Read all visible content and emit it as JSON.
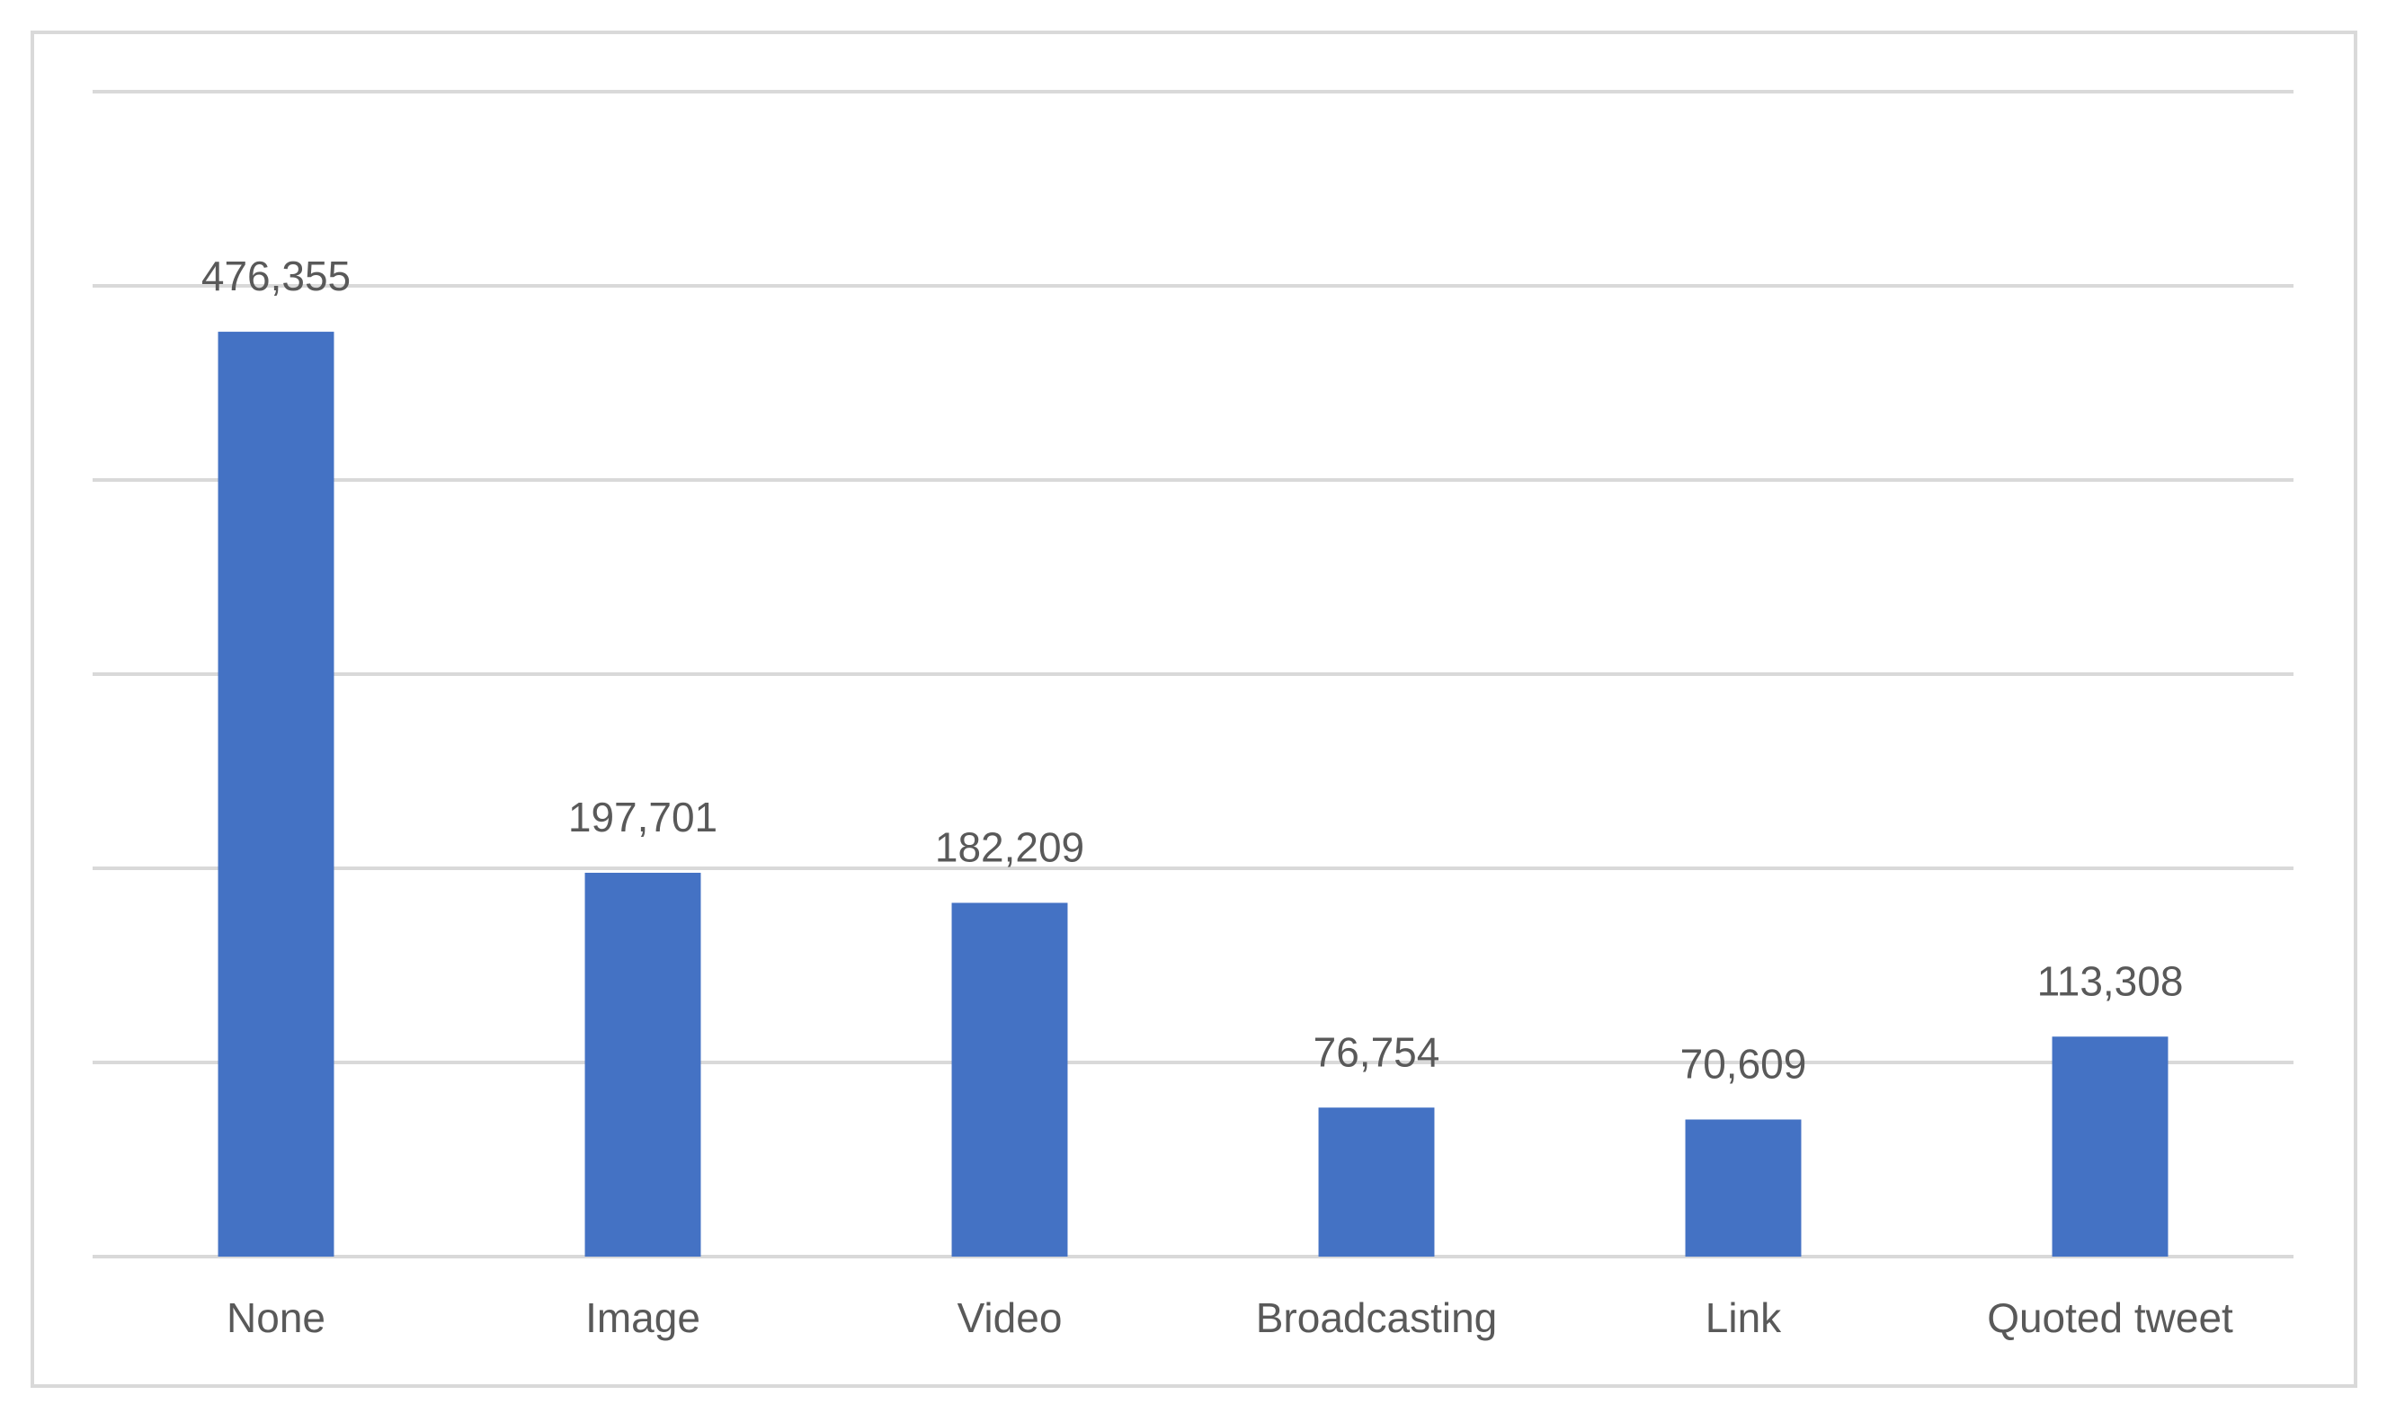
{
  "chart_data": {
    "type": "bar",
    "categories": [
      "None",
      "Image",
      "Video",
      "Broadcasting",
      "Link",
      "Quoted tweet"
    ],
    "values": [
      476355,
      197701,
      182209,
      76754,
      70609,
      113308
    ],
    "value_labels": [
      "476,355",
      "197,701",
      "182,209",
      "76,754",
      "70,609",
      "113,308"
    ],
    "color": "#4472c4",
    "ylim": [
      0,
      600000
    ],
    "yticks": [
      0,
      100000,
      200000,
      300000,
      400000,
      500000,
      600000
    ],
    "grid": true
  }
}
